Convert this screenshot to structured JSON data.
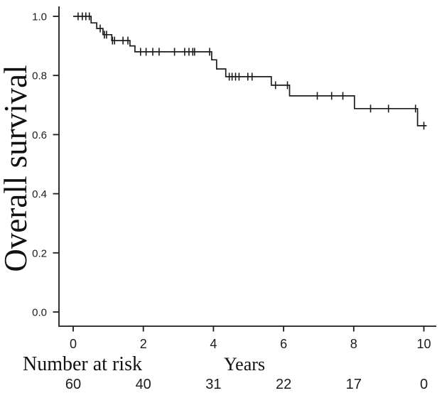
{
  "figure": {
    "background": "#ffffff",
    "ink_color": "#1c1c1c"
  },
  "chart_data": {
    "type": "line",
    "subtype": "kaplan-meier-step-function",
    "title": "",
    "xlabel": "Years",
    "ylabel": "Overall survival",
    "grid": false,
    "legend": "none",
    "xlim": [
      0,
      10.2
    ],
    "ylim": [
      0.0,
      1.0
    ],
    "xticks": [
      0,
      2,
      4,
      6,
      8,
      10
    ],
    "yticks": [
      {
        "label": "0.0",
        "value": 0.0
      },
      {
        "label": "0.2",
        "value": 0.2
      },
      {
        "label": "0.4",
        "value": 0.4
      },
      {
        "label": "0.6",
        "value": 0.6
      },
      {
        "label": "0.8",
        "value": 0.8
      },
      {
        "label": "1.0",
        "value": 1.0
      }
    ],
    "series": [
      {
        "name": "Overall survival",
        "color": "#1c1c1c",
        "steps": [
          [
            0.0,
            1.0
          ],
          [
            0.51,
            0.978
          ],
          [
            0.67,
            0.959
          ],
          [
            0.85,
            0.938
          ],
          [
            1.1,
            0.918
          ],
          [
            1.62,
            0.9
          ],
          [
            1.76,
            0.88
          ],
          [
            3.95,
            0.853
          ],
          [
            4.09,
            0.822
          ],
          [
            4.35,
            0.796
          ],
          [
            5.65,
            0.767
          ],
          [
            6.17,
            0.731
          ],
          [
            8.02,
            0.688
          ],
          [
            9.82,
            0.63
          ]
        ],
        "end_time": 10.08,
        "censor_marks": [
          [
            0.14,
            1.0
          ],
          [
            0.26,
            1.0
          ],
          [
            0.36,
            1.0
          ],
          [
            0.46,
            1.0
          ],
          [
            0.77,
            0.959
          ],
          [
            0.89,
            0.938
          ],
          [
            0.95,
            0.938
          ],
          [
            1.12,
            0.918
          ],
          [
            1.18,
            0.918
          ],
          [
            1.42,
            0.918
          ],
          [
            1.56,
            0.918
          ],
          [
            1.92,
            0.88
          ],
          [
            2.08,
            0.88
          ],
          [
            2.27,
            0.88
          ],
          [
            2.45,
            0.88
          ],
          [
            2.89,
            0.88
          ],
          [
            3.18,
            0.88
          ],
          [
            3.3,
            0.88
          ],
          [
            3.41,
            0.88
          ],
          [
            3.46,
            0.88
          ],
          [
            3.89,
            0.88
          ],
          [
            4.45,
            0.796
          ],
          [
            4.53,
            0.796
          ],
          [
            4.63,
            0.796
          ],
          [
            4.73,
            0.796
          ],
          [
            4.98,
            0.796
          ],
          [
            5.1,
            0.796
          ],
          [
            5.77,
            0.767
          ],
          [
            6.11,
            0.767
          ],
          [
            6.96,
            0.731
          ],
          [
            7.37,
            0.731
          ],
          [
            7.69,
            0.731
          ],
          [
            8.48,
            0.688
          ],
          [
            8.99,
            0.688
          ],
          [
            9.76,
            0.688
          ],
          [
            10.0,
            0.63
          ]
        ]
      }
    ],
    "number_at_risk": {
      "label": "Number at risk",
      "times": [
        0,
        2,
        4,
        6,
        8,
        10
      ],
      "counts": [
        60,
        40,
        31,
        22,
        17,
        0
      ]
    }
  }
}
